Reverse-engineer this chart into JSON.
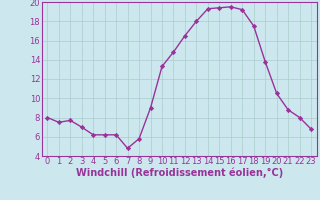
{
  "x": [
    0,
    1,
    2,
    3,
    4,
    5,
    6,
    7,
    8,
    9,
    10,
    11,
    12,
    13,
    14,
    15,
    16,
    17,
    18,
    19,
    20,
    21,
    22,
    23
  ],
  "y": [
    8.0,
    7.5,
    7.7,
    7.0,
    6.2,
    6.2,
    6.2,
    4.8,
    5.8,
    9.0,
    13.3,
    14.8,
    16.5,
    18.0,
    19.3,
    19.4,
    19.5,
    19.2,
    17.5,
    13.8,
    10.5,
    8.8,
    8.0,
    6.8
  ],
  "line_color": "#993399",
  "marker": "D",
  "marker_size": 2.2,
  "bg_color": "#cce8ee",
  "grid_color": "#aacccc",
  "xlabel": "Windchill (Refroidissement éolien,°C)",
  "ylim": [
    4,
    20
  ],
  "xlim_min": -0.5,
  "xlim_max": 23.5,
  "yticks": [
    4,
    6,
    8,
    10,
    12,
    14,
    16,
    18,
    20
  ],
  "xticks": [
    0,
    1,
    2,
    3,
    4,
    5,
    6,
    7,
    8,
    9,
    10,
    11,
    12,
    13,
    14,
    15,
    16,
    17,
    18,
    19,
    20,
    21,
    22,
    23
  ],
  "tick_label_color": "#993399",
  "axis_color": "#993399",
  "xlabel_fontsize": 7.0,
  "tick_fontsize": 6.0,
  "linewidth": 1.0
}
